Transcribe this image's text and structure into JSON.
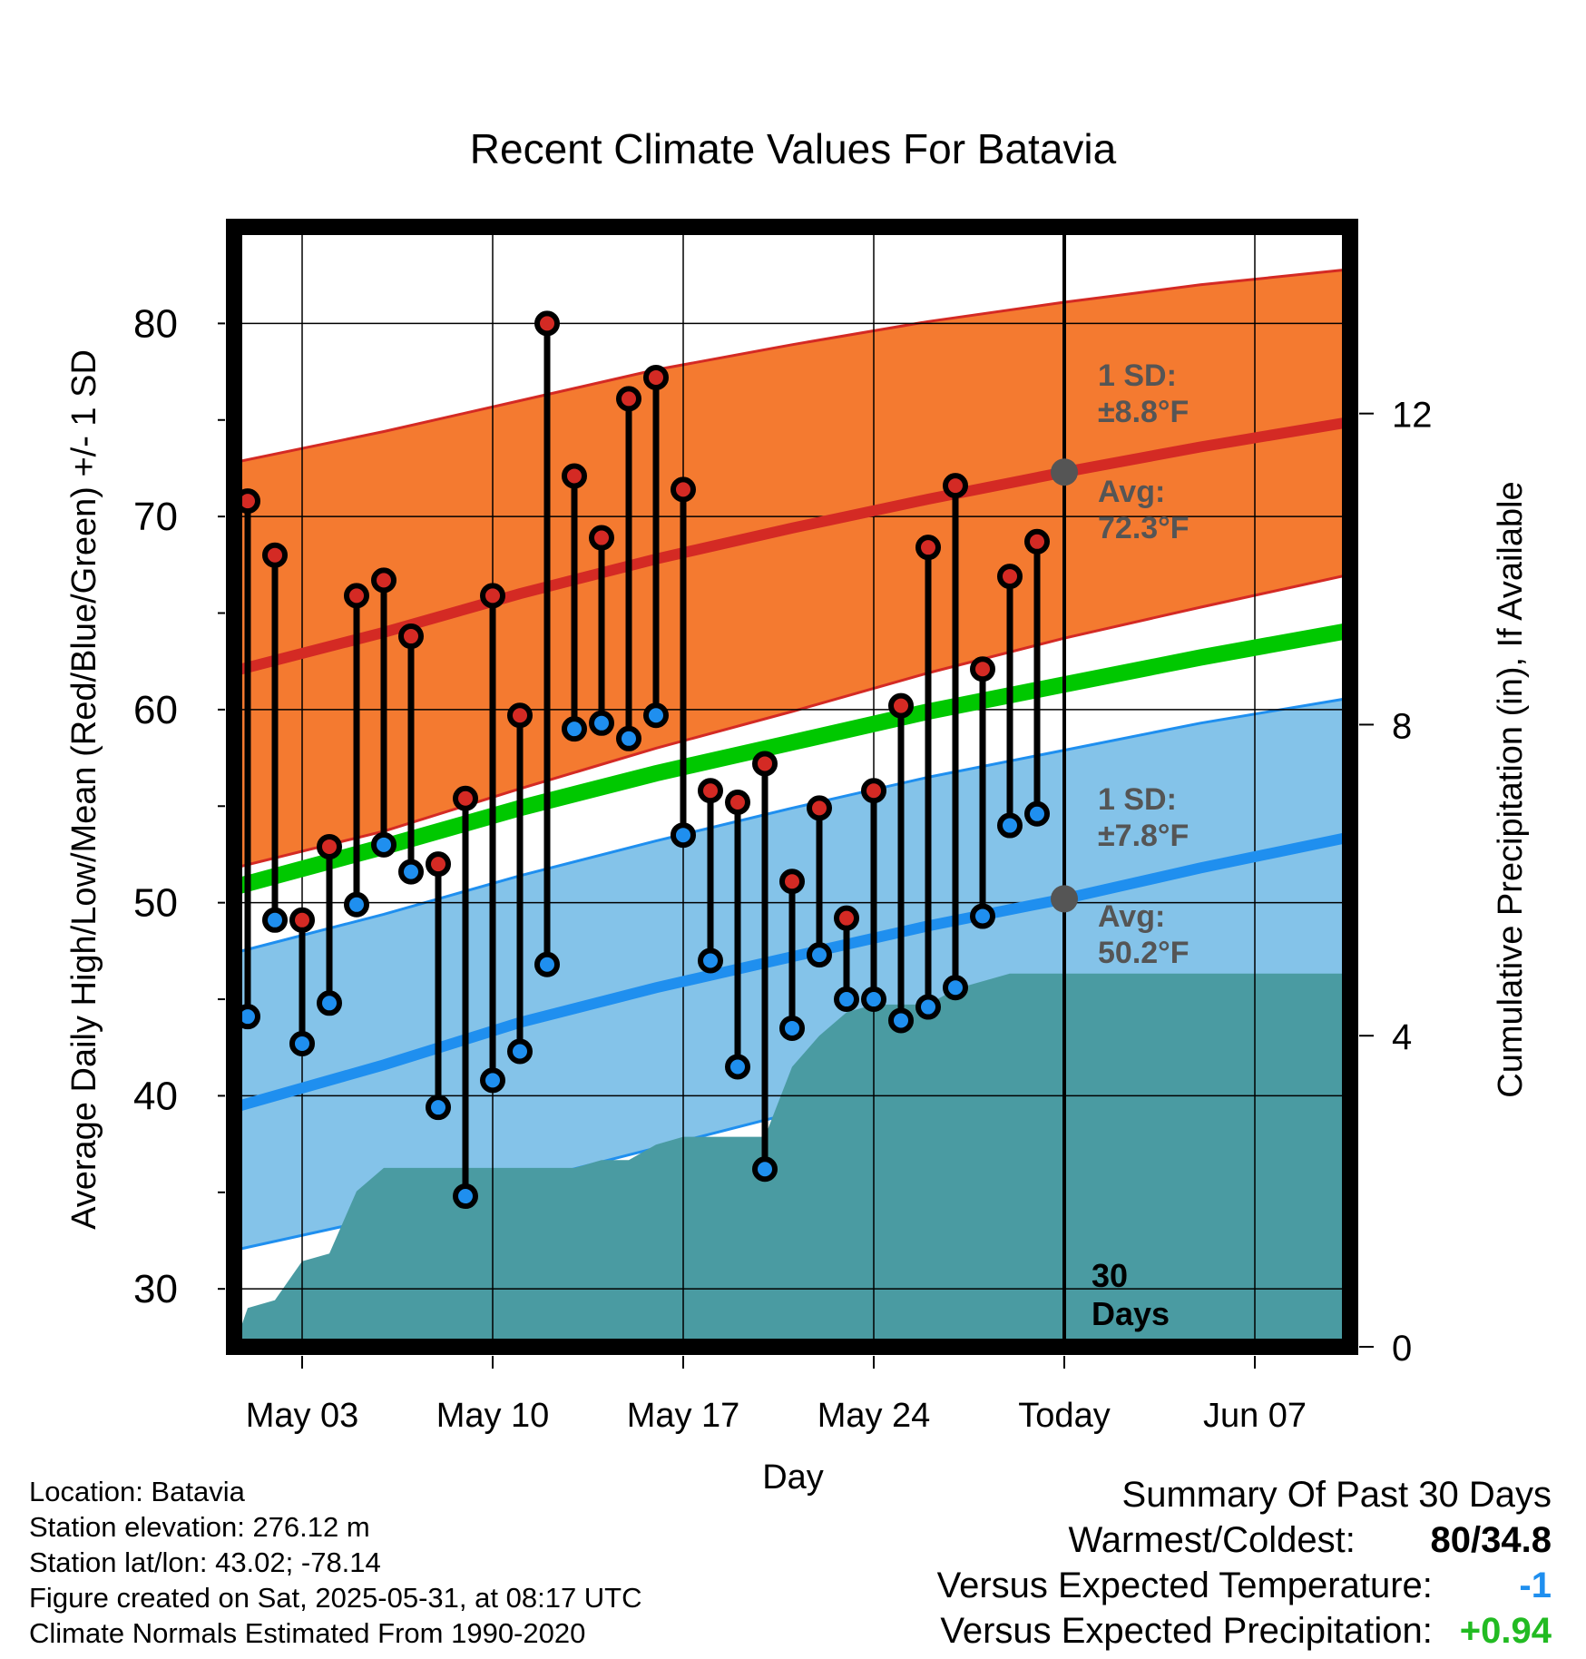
{
  "chart_data": {
    "type": "line",
    "title": "Recent Climate Values For Batavia",
    "xlabel": "Day",
    "ylabel_left": "Average Daily High/Low/Mean (Red/Blue/Green) +/- 1 SD",
    "ylabel_right": "Cumulative Precipitation (in), If Available",
    "x_range_days": [
      -30.5,
      10.5
    ],
    "ylim_left": [
      27,
      85
    ],
    "ylim_right": [
      0,
      14.4
    ],
    "yticks_left": [
      "30",
      "40",
      "50",
      "60",
      "70",
      "80"
    ],
    "yticks_right": [
      "0",
      "4",
      "8",
      "12"
    ],
    "xticks": [
      {
        "day": -28,
        "label": "May 03"
      },
      {
        "day": -21,
        "label": "May 10"
      },
      {
        "day": -14,
        "label": "May 17"
      },
      {
        "day": -7,
        "label": "May 24"
      },
      {
        "day": 0,
        "label": "Today"
      },
      {
        "day": 7,
        "label": "Jun 07"
      }
    ],
    "grid": true,
    "colors": {
      "high_band": "#f47a30",
      "high_line": "#d42a24",
      "low_band": "#84c3e9",
      "low_line": "#1f8fef",
      "mean_line": "#00c800",
      "precip": "#4a9ba2",
      "marker_high": "#d42a24",
      "marker_low": "#1f8fef"
    },
    "normals": {
      "days": [
        -30.5,
        -25,
        -20,
        -15,
        -10,
        -5,
        0,
        5,
        10.5
      ],
      "avg_high": [
        62.0,
        64.0,
        66.0,
        67.8,
        69.4,
        70.9,
        72.3,
        73.6,
        74.9
      ],
      "avg_low": [
        39.4,
        41.6,
        43.8,
        45.6,
        47.2,
        48.8,
        50.2,
        51.8,
        53.4
      ],
      "avg_mean": [
        50.8,
        52.9,
        54.9,
        56.7,
        58.3,
        59.9,
        61.3,
        62.7,
        64.1
      ],
      "high_upper": [
        72.8,
        74.4,
        76.0,
        77.6,
        78.9,
        80.1,
        81.1,
        82.0,
        82.8
      ],
      "high_lower": [
        51.8,
        53.7,
        55.9,
        58.0,
        59.9,
        61.9,
        63.7,
        65.3,
        67.0
      ],
      "low_upper": [
        47.4,
        49.4,
        51.4,
        53.2,
        54.9,
        56.5,
        57.9,
        59.3,
        60.6
      ],
      "low_lower": [
        32.0,
        33.7,
        35.5,
        37.3,
        39.1,
        40.9,
        42.7,
        44.5,
        46.3
      ]
    },
    "daily": {
      "days": [
        -30,
        -29,
        -28,
        -27,
        -26,
        -25,
        -24,
        -23,
        -22,
        -21,
        -20,
        -19,
        -18,
        -17,
        -16,
        -15,
        -14,
        -13,
        -12,
        -11,
        -10,
        -9,
        -8,
        -7,
        -6,
        -5,
        -4,
        -3,
        -2,
        -1
      ],
      "high": [
        70.8,
        68.0,
        49.1,
        52.9,
        65.9,
        66.7,
        63.8,
        52.0,
        55.4,
        65.9,
        59.7,
        80.0,
        72.1,
        68.9,
        76.1,
        77.2,
        71.4,
        55.8,
        55.2,
        57.2,
        51.1,
        54.9,
        49.2,
        55.8,
        60.2,
        68.4,
        71.6,
        62.1,
        66.9,
        68.7
      ],
      "low": [
        44.1,
        49.1,
        42.7,
        44.8,
        49.9,
        53.0,
        51.6,
        39.4,
        34.8,
        40.8,
        42.3,
        46.8,
        59.0,
        59.3,
        58.5,
        59.7,
        53.5,
        47.0,
        41.5,
        36.2,
        43.5,
        47.3,
        45.0,
        45.0,
        43.9,
        44.6,
        45.6,
        49.3,
        54.0,
        54.6
      ]
    },
    "precip_cumulative": {
      "days": [
        -30.5,
        -30,
        -29,
        -28,
        -27,
        -26,
        -25,
        -24,
        -23,
        -22,
        -21,
        -20,
        -19,
        -18,
        -17,
        -16,
        -15,
        -14,
        -13,
        -12,
        -11,
        -10,
        -9,
        -8,
        -7,
        -6,
        -5,
        -4,
        -3,
        -2,
        -1,
        0,
        10.5
      ],
      "values": [
        0.0,
        0.5,
        0.6,
        1.1,
        1.2,
        2.0,
        2.3,
        2.3,
        2.3,
        2.3,
        2.3,
        2.3,
        2.3,
        2.3,
        2.4,
        2.4,
        2.6,
        2.7,
        2.7,
        2.7,
        2.7,
        3.6,
        4.0,
        4.3,
        4.4,
        4.4,
        4.4,
        4.6,
        4.7,
        4.8,
        4.8,
        4.8,
        4.8
      ]
    },
    "annotations": {
      "high_sd": "1 SD:",
      "high_sd_value": "±8.8°F",
      "high_avg": "Avg:",
      "high_avg_value": "72.3°F",
      "low_sd": "1 SD:",
      "low_sd_value": "±7.8°F",
      "low_avg": "Avg:",
      "low_avg_value": "50.2°F",
      "window_days": "30",
      "window_unit": "Days"
    }
  },
  "info": {
    "location": "Location: Batavia",
    "elevation": "Station elevation: 276.12 m",
    "latlon": "Station lat/lon: 43.02; -78.14",
    "created": "Figure created on Sat, 2025-05-31, at 08:17 UTC",
    "normals": "Climate Normals Estimated From 1990-2020"
  },
  "summary": {
    "title": "Summary Of Past 30 Days",
    "warmest_label": "Warmest/Coldest:",
    "warmest_value": "80/34.8",
    "temp_label": "Versus Expected Temperature:",
    "temp_value": "-1",
    "temp_color": "#1f8fef",
    "precip_label": "Versus Expected Precipitation:",
    "precip_value": "+0.94",
    "precip_color": "#22bb22"
  }
}
